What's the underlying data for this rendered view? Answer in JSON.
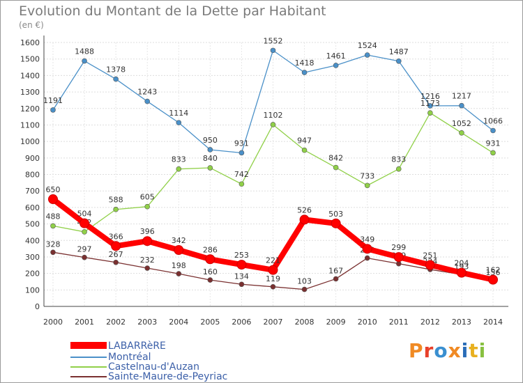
{
  "chart_data": {
    "type": "line",
    "title": "Evolution du Montant de la Dette par Habitant",
    "subtitle": "(en €)",
    "categories": [
      "2000",
      "2001",
      "2002",
      "2003",
      "2004",
      "2005",
      "2006",
      "2007",
      "2008",
      "2009",
      "2010",
      "2011",
      "2012",
      "2013",
      "2014"
    ],
    "ylim": [
      0,
      1600
    ],
    "yticks": [
      0,
      100,
      200,
      300,
      400,
      500,
      600,
      700,
      800,
      900,
      1000,
      1100,
      1200,
      1300,
      1400,
      1500,
      1600
    ],
    "grid": true,
    "legend_position": "bottom-left",
    "series": [
      {
        "name": "LABARRèRE",
        "color": "#ff0000",
        "values": [
          650,
          504,
          366,
          396,
          342,
          286,
          253,
          221,
          526,
          503,
          349,
          299,
          251,
          204,
          162
        ]
      },
      {
        "name": "Montréal",
        "color": "#4a90c8",
        "values": [
          1191,
          1488,
          1378,
          1243,
          1114,
          950,
          931,
          1552,
          1418,
          1461,
          1524,
          1487,
          1216,
          1217,
          1066
        ]
      },
      {
        "name": "Castelnau-d'Auzan",
        "color": "#90d048",
        "values": [
          488,
          452,
          588,
          605,
          833,
          840,
          742,
          1102,
          947,
          842,
          733,
          833,
          1173,
          1052,
          931
        ]
      },
      {
        "name": "Sainte-Maure-de-Peyriac",
        "color": "#7a3030",
        "values": [
          328,
          297,
          267,
          232,
          198,
          160,
          134,
          119,
          103,
          167,
          293,
          259,
          224,
          193,
          156
        ]
      }
    ]
  },
  "logo": {
    "text": "Proxiti",
    "colors": [
      "#f08a24",
      "#e8402a",
      "#3a8fd0",
      "#f08a24",
      "#2a6db8",
      "#e8b020",
      "#88c040"
    ]
  }
}
